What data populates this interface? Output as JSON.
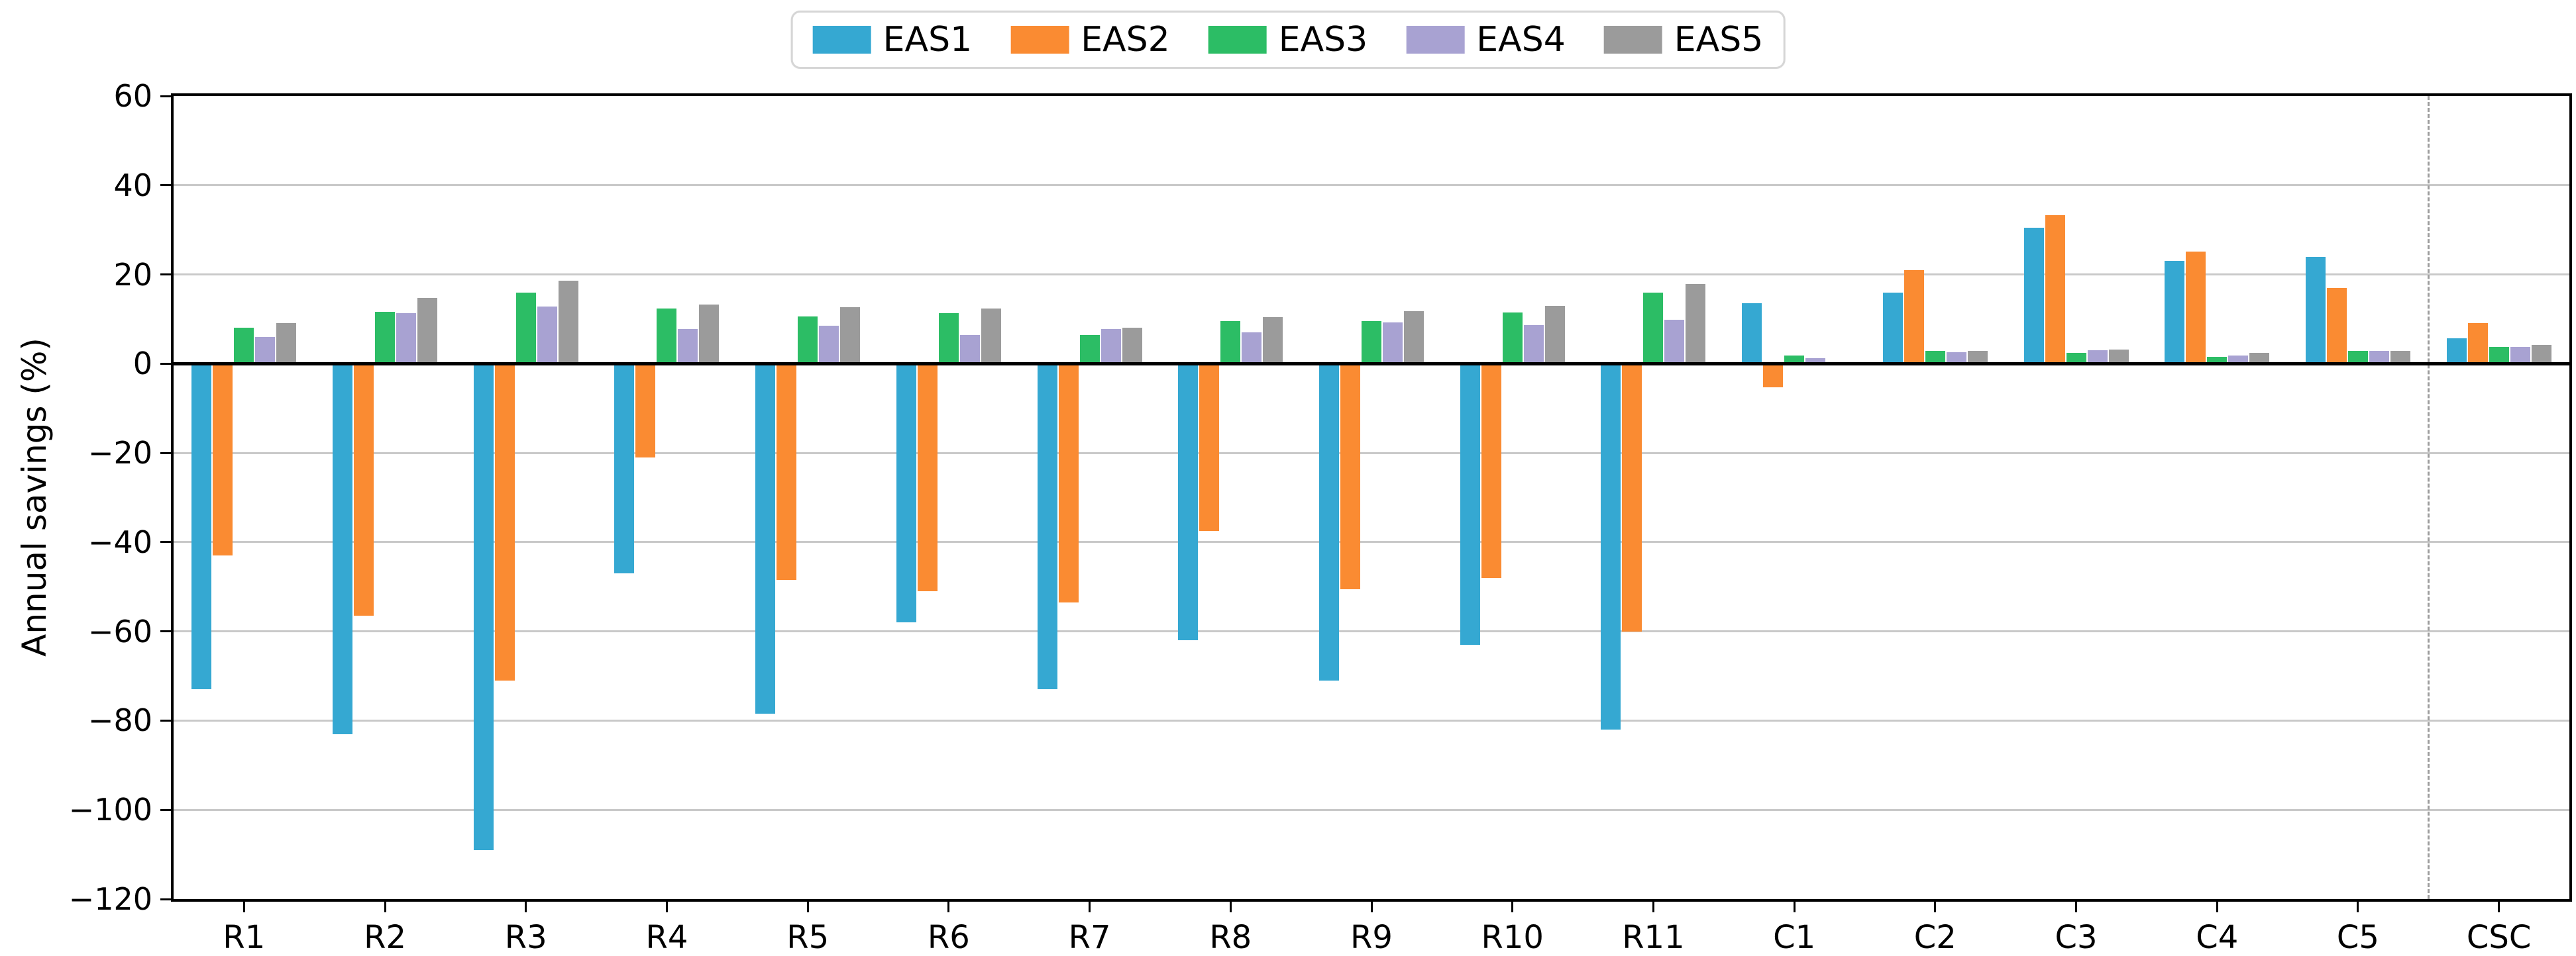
{
  "chart_data": {
    "type": "bar",
    "title": "",
    "xlabel": "",
    "ylabel": "Annual savings (%)",
    "ylim": [
      -120,
      60
    ],
    "grid": "horizontal",
    "legend_position": "top-center-outside",
    "separator": {
      "style": "dashed",
      "between": [
        "C5",
        "CSC"
      ]
    },
    "yticks": [
      {
        "v": 60,
        "label": "60"
      },
      {
        "v": 40,
        "label": "40"
      },
      {
        "v": 20,
        "label": "20"
      },
      {
        "v": 0,
        "label": "0"
      },
      {
        "v": -20,
        "label": "−20"
      },
      {
        "v": -40,
        "label": "−40"
      },
      {
        "v": -60,
        "label": "−60"
      },
      {
        "v": -80,
        "label": "−80"
      },
      {
        "v": -100,
        "label": "−100"
      },
      {
        "v": -120,
        "label": "−120"
      }
    ],
    "categories": [
      "R1",
      "R2",
      "R3",
      "R4",
      "R5",
      "R6",
      "R7",
      "R8",
      "R9",
      "R10",
      "R11",
      "C1",
      "C2",
      "C3",
      "C4",
      "C5",
      "CSC"
    ],
    "series": [
      {
        "name": "EAS1",
        "color": "#35a8d2",
        "values": [
          -73,
          -83,
          -109,
          -47,
          -78.5,
          -58,
          -73,
          -62,
          -71,
          -63,
          -82,
          13.5,
          16,
          30.5,
          23,
          24,
          5.7
        ]
      },
      {
        "name": "EAS2",
        "color": "#fa8b32",
        "values": [
          -43,
          -56.5,
          -71,
          -21,
          -48.5,
          -51,
          -53.5,
          -37.5,
          -50.5,
          -48,
          -60,
          -5.3,
          21,
          33.3,
          25.2,
          17,
          9.1
        ]
      },
      {
        "name": "EAS3",
        "color": "#2cbd65",
        "values": [
          8,
          11.6,
          16,
          12.3,
          10.6,
          11.4,
          6.5,
          9.5,
          9.6,
          11.5,
          15.9,
          1.8,
          2.9,
          2.4,
          1.6,
          2.9,
          3.7
        ]
      },
      {
        "name": "EAS4",
        "color": "#a8a2d2",
        "values": [
          6,
          11.3,
          12.8,
          7.7,
          8.5,
          6.5,
          7.7,
          7,
          9.2,
          8.6,
          9.8,
          1.3,
          2.6,
          3,
          1.9,
          2.9,
          3.8
        ]
      },
      {
        "name": "EAS5",
        "color": "#9b9b9b",
        "values": [
          9.1,
          14.7,
          18.6,
          13.2,
          12.7,
          12.4,
          8.1,
          10.5,
          11.8,
          13,
          17.8,
          0,
          2.8,
          3.2,
          2.35,
          2.8,
          4.2
        ]
      }
    ]
  }
}
